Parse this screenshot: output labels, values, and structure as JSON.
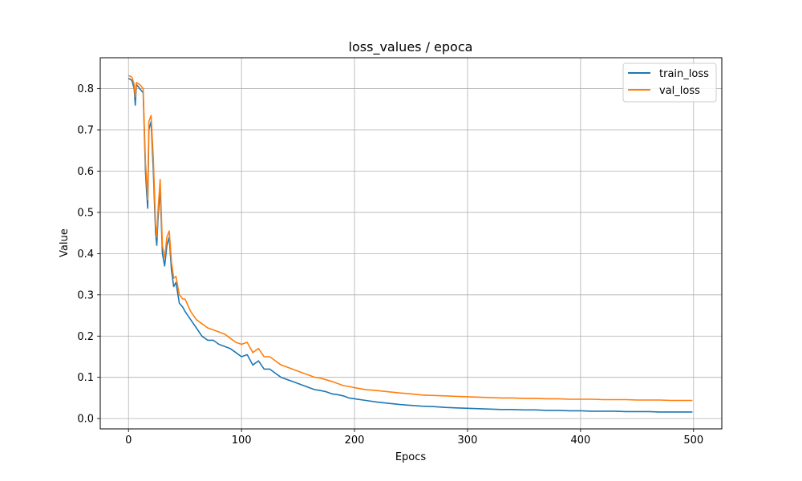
{
  "chart_data": {
    "type": "line",
    "title": "loss_values / epoca",
    "xlabel": "Epocs",
    "ylabel": "Value",
    "xlim": [
      -25,
      525
    ],
    "ylim": [
      -0.025,
      0.875
    ],
    "xticks": [
      0,
      100,
      200,
      300,
      400,
      500
    ],
    "yticks": [
      0.0,
      0.1,
      0.2,
      0.3,
      0.4,
      0.5,
      0.6,
      0.7,
      0.8
    ],
    "xtick_labels": [
      "0",
      "100",
      "200",
      "300",
      "400",
      "500"
    ],
    "ytick_labels": [
      "0.0",
      "0.1",
      "0.2",
      "0.3",
      "0.4",
      "0.5",
      "0.6",
      "0.7",
      "0.8"
    ],
    "grid": true,
    "legend_position": "top-right",
    "series": [
      {
        "name": "train_loss",
        "color": "#1f77b4",
        "x": [
          0,
          3,
          5,
          6,
          7,
          10,
          13,
          15,
          16,
          17,
          18,
          20,
          22,
          24,
          25,
          26,
          28,
          30,
          32,
          34,
          36,
          38,
          40,
          42,
          45,
          48,
          50,
          55,
          60,
          65,
          70,
          75,
          80,
          85,
          90,
          95,
          100,
          105,
          110,
          115,
          120,
          125,
          130,
          135,
          140,
          145,
          150,
          155,
          160,
          165,
          170,
          175,
          180,
          185,
          190,
          195,
          200,
          210,
          220,
          230,
          240,
          250,
          260,
          270,
          280,
          290,
          300,
          310,
          320,
          330,
          340,
          350,
          360,
          370,
          380,
          390,
          400,
          410,
          420,
          430,
          440,
          450,
          460,
          470,
          480,
          490,
          499
        ],
        "y": [
          0.825,
          0.82,
          0.8,
          0.76,
          0.81,
          0.8,
          0.79,
          0.6,
          0.55,
          0.51,
          0.7,
          0.72,
          0.6,
          0.45,
          0.42,
          0.48,
          0.56,
          0.4,
          0.37,
          0.42,
          0.44,
          0.36,
          0.32,
          0.33,
          0.28,
          0.27,
          0.26,
          0.24,
          0.22,
          0.2,
          0.19,
          0.19,
          0.18,
          0.175,
          0.17,
          0.16,
          0.15,
          0.155,
          0.13,
          0.14,
          0.12,
          0.12,
          0.11,
          0.1,
          0.095,
          0.09,
          0.085,
          0.08,
          0.075,
          0.07,
          0.068,
          0.065,
          0.06,
          0.058,
          0.055,
          0.05,
          0.048,
          0.044,
          0.04,
          0.037,
          0.034,
          0.032,
          0.03,
          0.029,
          0.027,
          0.026,
          0.025,
          0.024,
          0.023,
          0.022,
          0.022,
          0.021,
          0.021,
          0.02,
          0.02,
          0.019,
          0.019,
          0.018,
          0.018,
          0.018,
          0.017,
          0.017,
          0.017,
          0.016,
          0.016,
          0.016,
          0.016
        ]
      },
      {
        "name": "val_loss",
        "color": "#ff7f0e",
        "x": [
          0,
          3,
          5,
          6,
          7,
          10,
          13,
          15,
          16,
          17,
          18,
          20,
          22,
          24,
          25,
          26,
          28,
          30,
          32,
          34,
          36,
          38,
          40,
          42,
          45,
          48,
          50,
          55,
          60,
          65,
          70,
          75,
          80,
          85,
          90,
          95,
          100,
          105,
          110,
          115,
          120,
          125,
          130,
          135,
          140,
          145,
          150,
          155,
          160,
          165,
          170,
          175,
          180,
          185,
          190,
          195,
          200,
          210,
          220,
          230,
          240,
          250,
          260,
          270,
          280,
          290,
          300,
          310,
          320,
          330,
          340,
          350,
          360,
          370,
          380,
          390,
          400,
          410,
          420,
          430,
          440,
          450,
          460,
          470,
          480,
          490,
          499
        ],
        "y": [
          0.832,
          0.828,
          0.81,
          0.78,
          0.815,
          0.81,
          0.8,
          0.62,
          0.58,
          0.53,
          0.72,
          0.735,
          0.63,
          0.47,
          0.44,
          0.5,
          0.58,
          0.42,
          0.39,
          0.44,
          0.455,
          0.38,
          0.34,
          0.345,
          0.3,
          0.29,
          0.29,
          0.26,
          0.24,
          0.23,
          0.22,
          0.215,
          0.21,
          0.205,
          0.195,
          0.185,
          0.18,
          0.185,
          0.16,
          0.17,
          0.15,
          0.15,
          0.14,
          0.13,
          0.125,
          0.12,
          0.115,
          0.11,
          0.105,
          0.1,
          0.098,
          0.094,
          0.09,
          0.085,
          0.08,
          0.078,
          0.075,
          0.07,
          0.068,
          0.065,
          0.062,
          0.06,
          0.057,
          0.056,
          0.055,
          0.054,
          0.053,
          0.052,
          0.051,
          0.05,
          0.05,
          0.049,
          0.049,
          0.048,
          0.048,
          0.047,
          0.047,
          0.047,
          0.046,
          0.046,
          0.046,
          0.045,
          0.045,
          0.045,
          0.044,
          0.044,
          0.044
        ]
      }
    ]
  }
}
